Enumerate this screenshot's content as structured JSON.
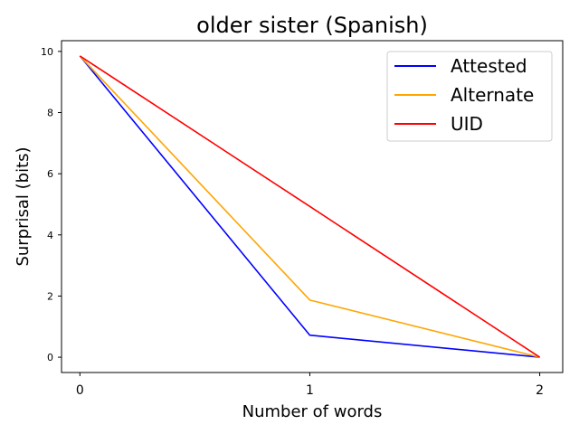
{
  "chart_data": {
    "type": "line",
    "title": "older sister (Spanish)",
    "xlabel": "Number of words",
    "ylabel": "Surprisal (bits)",
    "x": [
      0,
      1,
      2
    ],
    "x_ticks": [
      "0",
      "1",
      "2"
    ],
    "y_ticks": [
      "0",
      "2",
      "4",
      "6",
      "8",
      "10"
    ],
    "xlim": [
      -0.08,
      2.1
    ],
    "ylim": [
      -0.5,
      10.35
    ],
    "grid": false,
    "legend_position": "top-right",
    "series": [
      {
        "name": "Attested",
        "color": "#0000ff",
        "values": [
          9.85,
          0.72,
          0.0
        ]
      },
      {
        "name": "Alternate",
        "color": "#ffa500",
        "values": [
          9.85,
          1.87,
          0.0
        ]
      },
      {
        "name": "UID",
        "color": "#ff0000",
        "values": [
          9.85,
          4.93,
          0.0
        ]
      }
    ]
  }
}
